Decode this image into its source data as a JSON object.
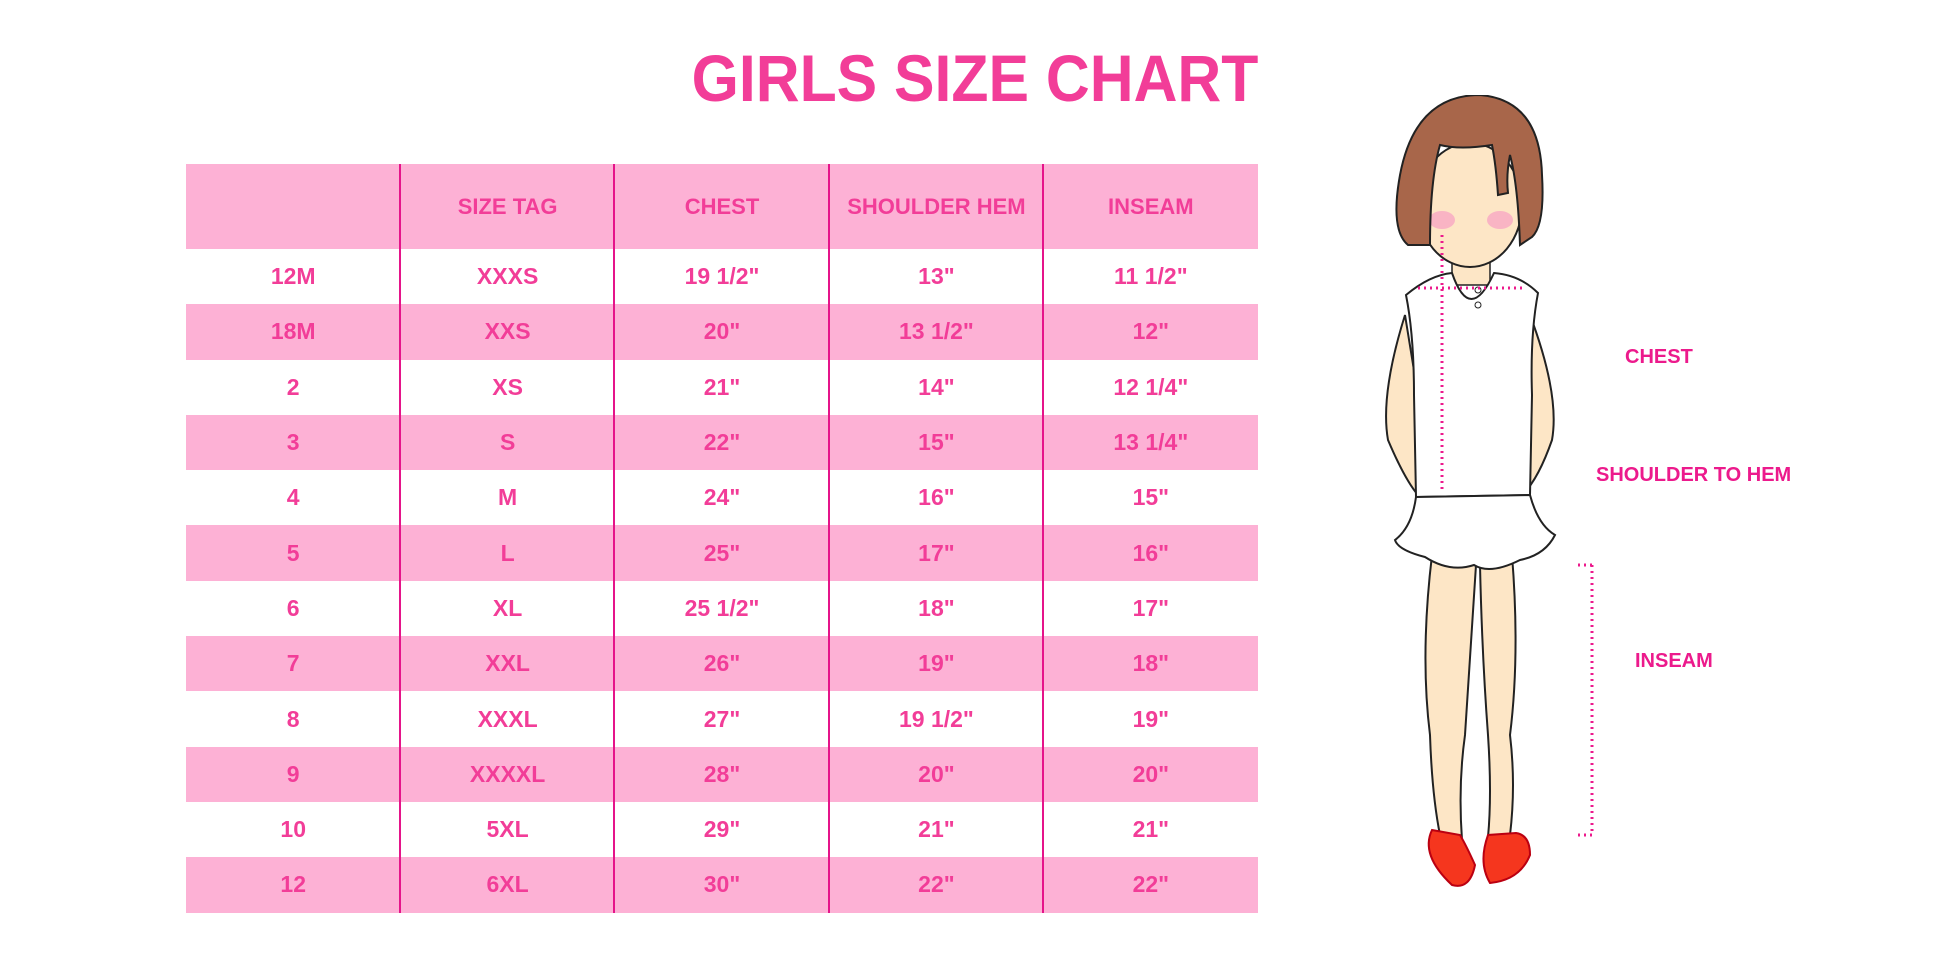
{
  "title": "GIRLS SIZE CHART",
  "table": {
    "headers": [
      "",
      "SIZE TAG",
      "CHEST",
      "SHOULDER HEM",
      "INSEAM"
    ],
    "rows": [
      [
        "12M",
        "XXXS",
        "19 1/2\"",
        "13\"",
        "11 1/2\""
      ],
      [
        "18M",
        "XXS",
        "20\"",
        "13 1/2\"",
        "12\""
      ],
      [
        "2",
        "XS",
        "21\"",
        "14\"",
        "12 1/4\""
      ],
      [
        "3",
        "S",
        "22\"",
        "15\"",
        "13 1/4\""
      ],
      [
        "4",
        "M",
        "24\"",
        "16\"",
        "15\""
      ],
      [
        "5",
        "L",
        "25\"",
        "17\"",
        "16\""
      ],
      [
        "6",
        "XL",
        "25 1/2\"",
        "18\"",
        "17\""
      ],
      [
        "7",
        "XXL",
        "26\"",
        "19\"",
        "18\""
      ],
      [
        "8",
        "XXXL",
        "27\"",
        "19 1/2\"",
        "19\""
      ],
      [
        "9",
        "XXXXL",
        "28\"",
        "20\"",
        "20\""
      ],
      [
        "10",
        "5XL",
        "29\"",
        "21\"",
        "21\""
      ],
      [
        "12",
        "6XL",
        "30\"",
        "22\"",
        "22\""
      ]
    ]
  },
  "figure": {
    "labels": {
      "chest": "CHEST",
      "shoulder_to_hem": "SHOULDER TO HEM",
      "inseam": "INSEAM"
    }
  },
  "colors": {
    "accent": "#f23d98",
    "row_pink": "#fdb1d5",
    "divider": "#e5148a"
  }
}
